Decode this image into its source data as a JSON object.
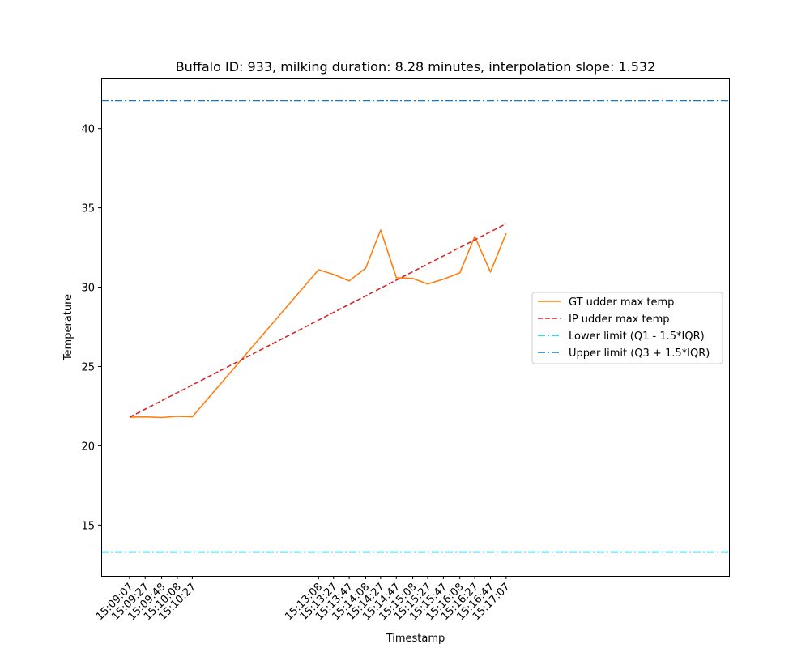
{
  "chart_data": {
    "type": "line",
    "title": "Buffalo ID: 933, milking duration: 8.28 minutes, interpolation slope: 1.532",
    "xlabel": "Timestamp",
    "ylabel": "Temperature",
    "xlim_seconds_after_first": [
      -36,
      764
    ],
    "ylim": [
      11.8,
      43.2
    ],
    "yticks": [
      15,
      20,
      25,
      30,
      35,
      40
    ],
    "x": [
      "15:09:07",
      "15:09:27",
      "15:09:48",
      "15:10:08",
      "15:10:27",
      "15:13:08",
      "15:13:27",
      "15:13:47",
      "15:14:08",
      "15:14:27",
      "15:14:47",
      "15:15:08",
      "15:15:27",
      "15:15:47",
      "15:16:08",
      "15:16:27",
      "15:16:47",
      "15:17:07"
    ],
    "series": [
      {
        "name": "GT udder max temp",
        "color": "#ff7f0e",
        "style": "solid",
        "values": [
          21.8,
          21.82,
          21.78,
          21.86,
          21.83,
          31.1,
          30.8,
          30.4,
          31.2,
          33.6,
          30.6,
          30.55,
          30.2,
          30.5,
          30.9,
          33.2,
          30.95,
          33.4
        ]
      },
      {
        "name": "IP udder max temp",
        "color": "#d62728",
        "style": "dashed",
        "values_from_line": {
          "start": 21.8,
          "end": 34.0
        }
      },
      {
        "name": "Lower limit (Q1 - 1.5*IQR)",
        "color": "#17becf",
        "style": "dashdot",
        "constant": 13.3
      },
      {
        "name": "Upper limit (Q3 + 1.5*IQR)",
        "color": "#1f77b4",
        "style": "dashdot",
        "constant": 41.75
      }
    ],
    "grid": false,
    "legend_position": "center-right"
  }
}
